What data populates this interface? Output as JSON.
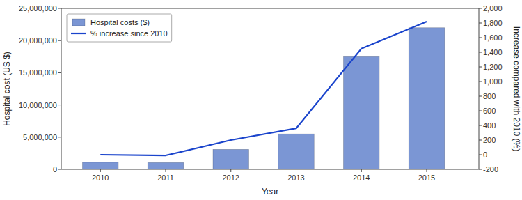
{
  "chart_data": {
    "type": "bar",
    "x": [
      2010,
      2011,
      2012,
      2013,
      2014,
      2015
    ],
    "xlim": [
      2009.4,
      2015.8
    ],
    "xticks": [
      2010,
      2011,
      2012,
      2013,
      2014,
      2015
    ],
    "xlabel": "Year",
    "ylabel": "Hospital cost (US $)",
    "y2label": "Increase compared with 2010 (%)",
    "ylim": [
      0,
      25000000
    ],
    "yticks": [
      0,
      {
        "value": 5000000,
        "label": "5,000,000"
      },
      {
        "value": 10000000,
        "label": "10,000,000"
      },
      {
        "value": 15000000,
        "label": "15,000,000"
      },
      {
        "value": 20000000,
        "label": "20,000,000"
      },
      {
        "value": 25000000,
        "label": "25,000,000"
      }
    ],
    "y2lim": [
      -200,
      2000
    ],
    "y2ticks": [
      -200,
      0,
      200,
      400,
      600,
      800,
      {
        "value": 1000,
        "label": "1,000"
      },
      {
        "value": 1200,
        "label": "1,200"
      },
      {
        "value": 1400,
        "label": "1,400"
      },
      {
        "value": 1600,
        "label": "1,600"
      },
      {
        "value": 1800,
        "label": "1,800"
      },
      {
        "value": 2000,
        "label": "2,000"
      }
    ],
    "grid": false,
    "legend": "upper left",
    "series": [
      {
        "name": "Hospital costs ($)",
        "type": "bar",
        "color": "#7b96d4",
        "values": [
          1100000,
          1050000,
          3100000,
          5500000,
          17500000,
          22000000
        ]
      },
      {
        "name": "% increase since 2010",
        "type": "line",
        "axis": "y2",
        "color": "#1a44cc",
        "line_style": "solid",
        "values": [
          0,
          -10,
          200,
          360,
          1450,
          1820
        ]
      }
    ]
  }
}
